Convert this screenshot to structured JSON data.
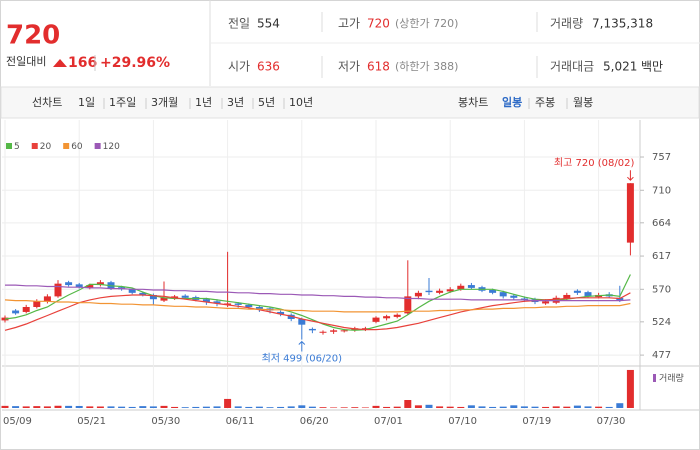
{
  "header": {
    "price": "720",
    "change_label": "전일대비",
    "change": "166",
    "change_pct": "+29.96%",
    "stats": [
      {
        "label": "전일",
        "value": "554"
      },
      {
        "label": "고가",
        "value": "720",
        "note": "(상한가 720)"
      },
      {
        "label": "거래량",
        "value": "7,135,318"
      },
      {
        "label": "시가",
        "value": "636"
      },
      {
        "label": "저가",
        "value": "618",
        "note": "(하한가 388)"
      },
      {
        "label": "거래대금",
        "value": "5,021",
        "unit": "백만"
      }
    ]
  },
  "tabs": {
    "line_label": "선차트",
    "line_periods": [
      "1일",
      "1주일",
      "3개월",
      "1년",
      "3년",
      "5년",
      "10년"
    ],
    "candle_label": "봉차트",
    "candle_periods": [
      "일봉",
      "주봉",
      "월봉"
    ],
    "active_candle": 0
  },
  "chart_data": {
    "type": "candlestick",
    "categories": [
      "05/09",
      null,
      null,
      null,
      null,
      null,
      null,
      "05/21",
      null,
      null,
      null,
      null,
      null,
      null,
      "05/30",
      null,
      null,
      null,
      null,
      null,
      null,
      "06/11",
      null,
      null,
      null,
      null,
      null,
      null,
      "06/20",
      null,
      null,
      null,
      null,
      null,
      null,
      "07/01",
      null,
      null,
      null,
      null,
      null,
      null,
      "07/10",
      null,
      null,
      null,
      null,
      null,
      null,
      "07/19",
      null,
      null,
      null,
      null,
      null,
      null,
      "07/30",
      null,
      null,
      null
    ],
    "open": [
      526,
      540,
      538,
      545,
      553,
      560,
      580,
      577,
      572,
      576,
      580,
      573,
      570,
      565,
      562,
      554,
      557,
      561,
      559,
      556,
      553,
      548,
      550,
      548,
      545,
      543,
      538,
      534,
      528,
      514,
      509,
      510,
      511,
      512,
      513,
      524,
      529,
      531,
      536,
      560,
      568,
      565,
      567,
      570,
      576,
      573,
      569,
      566,
      561,
      557,
      556,
      550,
      551,
      556,
      568,
      566,
      559,
      563,
      558,
      636
    ],
    "high": [
      533,
      542,
      548,
      556,
      563,
      583,
      582,
      579,
      578,
      583,
      582,
      575,
      572,
      567,
      564,
      581,
      562,
      563,
      561,
      558,
      556,
      623,
      552,
      550,
      547,
      545,
      540,
      536,
      530,
      516,
      512,
      514,
      514,
      517,
      517,
      532,
      534,
      536,
      611,
      568,
      586,
      571,
      573,
      578,
      579,
      575,
      571,
      568,
      563,
      560,
      558,
      556,
      561,
      565,
      570,
      568,
      565,
      566,
      575,
      720
    ],
    "low": [
      523,
      534,
      536,
      543,
      550,
      558,
      574,
      571,
      570,
      574,
      569,
      568,
      563,
      560,
      548,
      552,
      555,
      556,
      553,
      548,
      546,
      545,
      544,
      543,
      538,
      536,
      532,
      525,
      499,
      508,
      506,
      507,
      509,
      510,
      511,
      522,
      526,
      529,
      534,
      556,
      562,
      563,
      565,
      568,
      570,
      566,
      563,
      557,
      555,
      552,
      549,
      548,
      549,
      554,
      562,
      558,
      557,
      558,
      552,
      618
    ],
    "close": [
      530,
      536,
      545,
      553,
      560,
      578,
      576,
      573,
      576,
      580,
      571,
      570,
      565,
      562,
      556,
      558,
      560,
      558,
      555,
      552,
      550,
      550,
      548,
      545,
      542,
      540,
      535,
      528,
      520,
      512,
      510,
      512,
      512,
      515,
      515,
      530,
      532,
      534,
      560,
      565,
      566,
      568,
      570,
      575,
      572,
      568,
      565,
      560,
      558,
      555,
      552,
      553,
      558,
      562,
      565,
      560,
      562,
      560,
      554,
      720
    ],
    "up_color": "#e22d2d",
    "down_color": "#3a7bd5",
    "series": [
      {
        "name": "5",
        "color": "#55b847",
        "values": [
          528,
          530,
          534,
          540,
          545,
          554,
          562,
          569,
          577,
          577,
          575,
          574,
          572,
          566,
          561,
          558,
          557,
          557,
          557,
          557,
          555,
          553,
          551,
          549,
          547,
          545,
          542,
          538,
          533,
          527,
          521,
          516,
          513,
          512,
          513,
          517,
          521,
          525,
          534,
          544,
          553,
          560,
          566,
          570,
          570,
          570,
          570,
          567,
          563,
          559,
          556,
          555,
          555,
          556,
          558,
          560,
          561,
          562,
          560,
          591
        ]
      },
      {
        "name": "20",
        "color": "#e8413b",
        "values": [
          512,
          516,
          521,
          527,
          533,
          539,
          545,
          551,
          555,
          558,
          560,
          561,
          562,
          562,
          561,
          560,
          558,
          556,
          554,
          552,
          550,
          548,
          546,
          544,
          541,
          538,
          535,
          532,
          528,
          525,
          522,
          519,
          516,
          514,
          513,
          513,
          514,
          516,
          519,
          522,
          526,
          530,
          534,
          538,
          541,
          544,
          547,
          549,
          551,
          553,
          554,
          555,
          556,
          557,
          558,
          558,
          558,
          558,
          557,
          565
        ]
      },
      {
        "name": "60",
        "color": "#f29433",
        "values": [
          555,
          554,
          554,
          553,
          553,
          552,
          552,
          551,
          551,
          550,
          550,
          549,
          549,
          548,
          548,
          547,
          546,
          546,
          545,
          545,
          544,
          543,
          543,
          542,
          542,
          541,
          541,
          540,
          540,
          539,
          539,
          539,
          538,
          538,
          538,
          538,
          538,
          538,
          539,
          539,
          539,
          540,
          540,
          541,
          541,
          542,
          542,
          543,
          543,
          544,
          544,
          545,
          545,
          546,
          546,
          547,
          547,
          547,
          547,
          550
        ]
      },
      {
        "name": "120",
        "color": "#9b59b6",
        "values": [
          576,
          576,
          575,
          575,
          574,
          574,
          573,
          573,
          572,
          572,
          571,
          571,
          570,
          570,
          569,
          569,
          568,
          568,
          567,
          567,
          566,
          566,
          565,
          565,
          564,
          564,
          563,
          563,
          562,
          562,
          561,
          561,
          560,
          560,
          559,
          559,
          558,
          558,
          557,
          557,
          556,
          556,
          556,
          556,
          555,
          555,
          555,
          555,
          555,
          555,
          554,
          554,
          554,
          554,
          554,
          554,
          554,
          554,
          554,
          555
        ]
      }
    ],
    "volume": {
      "name": "거래량",
      "color": "#9b59b6",
      "ylim": [
        0,
        7500000
      ],
      "values": [
        400000,
        350000,
        300000,
        350000,
        300000,
        420000,
        400000,
        380000,
        300000,
        280000,
        300000,
        250000,
        200000,
        350000,
        300000,
        400000,
        200000,
        150000,
        200000,
        250000,
        300000,
        1700000,
        300000,
        200000,
        250000,
        150000,
        200000,
        300000,
        500000,
        250000,
        150000,
        100000,
        120000,
        150000,
        100000,
        400000,
        200000,
        250000,
        1500000,
        500000,
        600000,
        300000,
        250000,
        200000,
        500000,
        300000,
        200000,
        250000,
        500000,
        300000,
        250000,
        200000,
        300000,
        250000,
        450000,
        300000,
        250000,
        200000,
        900000,
        7135318
      ]
    },
    "ylim": [
      463,
      774
    ],
    "yticks": [
      477,
      524,
      570,
      617,
      664,
      710,
      757
    ],
    "grid": true,
    "high_label": "최고 720 (08/02)",
    "low_label": "최저 499 (06/20)"
  }
}
